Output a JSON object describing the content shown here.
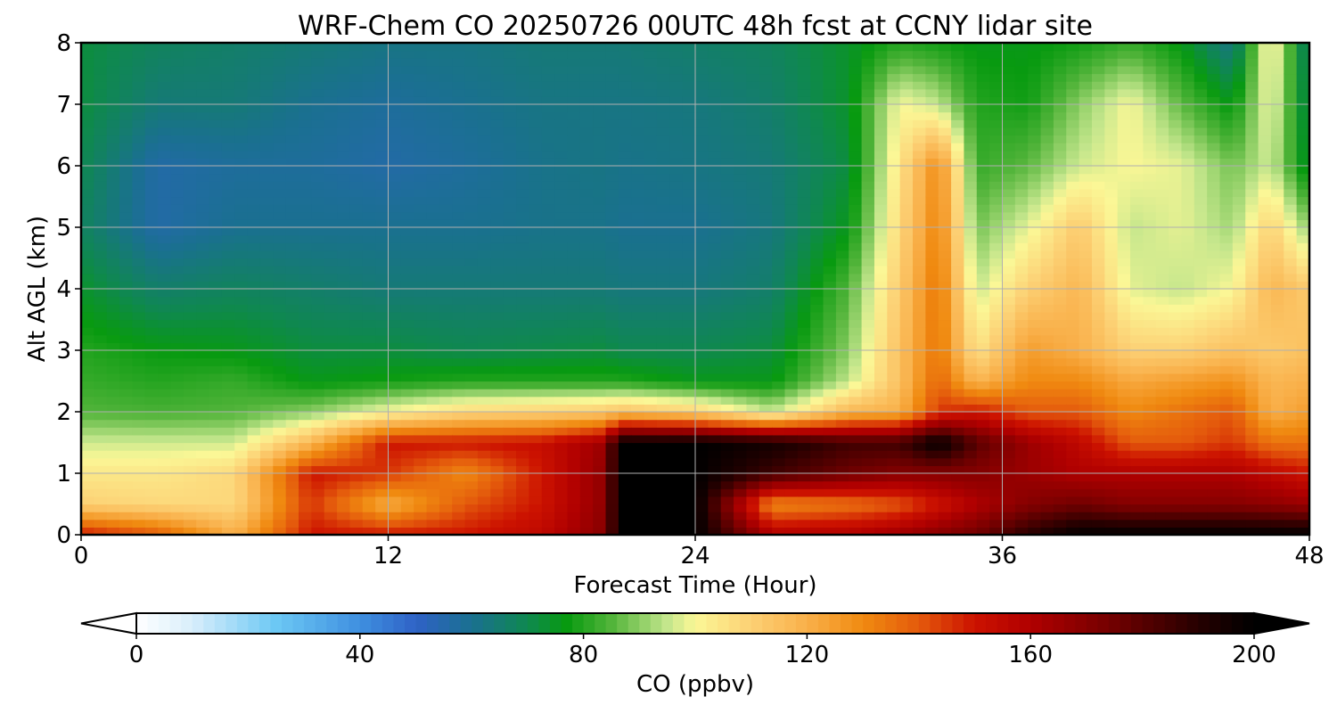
{
  "chart_data": {
    "type": "heatmap",
    "title": "WRF-Chem CO  20250726 00UTC 48h fcst at CCNY lidar site",
    "xlabel": "Forecast Time (Hour)",
    "ylabel": "Alt AGL (km)",
    "x_ticks": [
      0,
      12,
      24,
      36,
      48
    ],
    "y_ticks": [
      0,
      1,
      2,
      3,
      4,
      5,
      6,
      7,
      8
    ],
    "xlim": [
      0,
      48
    ],
    "ylim": [
      0,
      8
    ],
    "grid": true,
    "x": [
      0,
      3,
      6,
      9,
      12,
      15,
      18,
      20.5,
      21,
      24,
      27,
      30,
      32,
      33.5,
      35,
      37,
      39,
      41,
      43,
      45,
      46.5,
      48
    ],
    "y": [
      0,
      0.5,
      1.0,
      1.5,
      2.0,
      2.5,
      3.0,
      4.0,
      5.0,
      6.0,
      7.0,
      8.0
    ],
    "z": [
      [
        150,
        140,
        120,
        150,
        150,
        150,
        155,
        170,
        200,
        200,
        160,
        160,
        165,
        170,
        175,
        190,
        200,
        200,
        200,
        200,
        200,
        200
      ],
      [
        110,
        108,
        108,
        145,
        120,
        140,
        150,
        168,
        200,
        200,
        130,
        135,
        140,
        150,
        160,
        170,
        175,
        170,
        170,
        170,
        168,
        165
      ],
      [
        104,
        104,
        108,
        150,
        145,
        130,
        150,
        168,
        200,
        200,
        185,
        175,
        170,
        170,
        170,
        165,
        160,
        160,
        160,
        160,
        155,
        150
      ],
      [
        96,
        96,
        96,
        118,
        150,
        150,
        152,
        165,
        200,
        200,
        195,
        185,
        185,
        200,
        180,
        165,
        155,
        140,
        140,
        145,
        135,
        135
      ],
      [
        85,
        84,
        85,
        90,
        100,
        108,
        110,
        112,
        115,
        110,
        95,
        118,
        120,
        145,
        150,
        140,
        140,
        130,
        135,
        140,
        120,
        125
      ],
      [
        82,
        80,
        82,
        76,
        78,
        80,
        80,
        80,
        80,
        76,
        76,
        95,
        115,
        138,
        118,
        130,
        130,
        122,
        125,
        128,
        118,
        120
      ],
      [
        80,
        77,
        76,
        72,
        72,
        70,
        71,
        72,
        70,
        70,
        72,
        90,
        115,
        135,
        105,
        125,
        120,
        110,
        110,
        115,
        112,
        115
      ],
      [
        74,
        66,
        68,
        66,
        64,
        64,
        64,
        64,
        63,
        63,
        66,
        85,
        112,
        135,
        95,
        110,
        118,
        98,
        95,
        100,
        118,
        112
      ],
      [
        68,
        56,
        60,
        60,
        60,
        60,
        61,
        61,
        60,
        60,
        63,
        76,
        108,
        132,
        88,
        98,
        112,
        95,
        98,
        92,
        110,
        90
      ],
      [
        70,
        56,
        58,
        58,
        56,
        58,
        61,
        62,
        61,
        62,
        64,
        72,
        105,
        130,
        82,
        86,
        96,
        100,
        98,
        88,
        96,
        72
      ],
      [
        72,
        64,
        64,
        60,
        58,
        60,
        62,
        62,
        62,
        63,
        66,
        74,
        100,
        95,
        80,
        78,
        90,
        100,
        86,
        76,
        100,
        68
      ],
      [
        72,
        68,
        66,
        64,
        62,
        62,
        64,
        64,
        64,
        66,
        68,
        74,
        80,
        78,
        76,
        76,
        78,
        82,
        76,
        62,
        104,
        64
      ]
    ],
    "colorbar": {
      "label": "CO  (ppbv)",
      "ticks": [
        0,
        40,
        80,
        120,
        160,
        200
      ],
      "min": 0,
      "max": 200,
      "extend": "both",
      "stops": [
        {
          "v": 0,
          "c": "#ffffff"
        },
        {
          "v": 10,
          "c": "#d8eefb"
        },
        {
          "v": 25,
          "c": "#6cc8f4"
        },
        {
          "v": 40,
          "c": "#3f8fe0"
        },
        {
          "v": 50,
          "c": "#2f62c6"
        },
        {
          "v": 60,
          "c": "#1a7090"
        },
        {
          "v": 70,
          "c": "#0f8850"
        },
        {
          "v": 77,
          "c": "#089a10"
        },
        {
          "v": 85,
          "c": "#52b43a"
        },
        {
          "v": 95,
          "c": "#c4e68c"
        },
        {
          "v": 100,
          "c": "#fbf796"
        },
        {
          "v": 110,
          "c": "#fcd074"
        },
        {
          "v": 120,
          "c": "#f9b04a"
        },
        {
          "v": 130,
          "c": "#f08a10"
        },
        {
          "v": 140,
          "c": "#e45a0c"
        },
        {
          "v": 150,
          "c": "#cc1200"
        },
        {
          "v": 160,
          "c": "#b00000"
        },
        {
          "v": 175,
          "c": "#700000"
        },
        {
          "v": 190,
          "c": "#260000"
        },
        {
          "v": 200,
          "c": "#000000"
        }
      ]
    }
  }
}
